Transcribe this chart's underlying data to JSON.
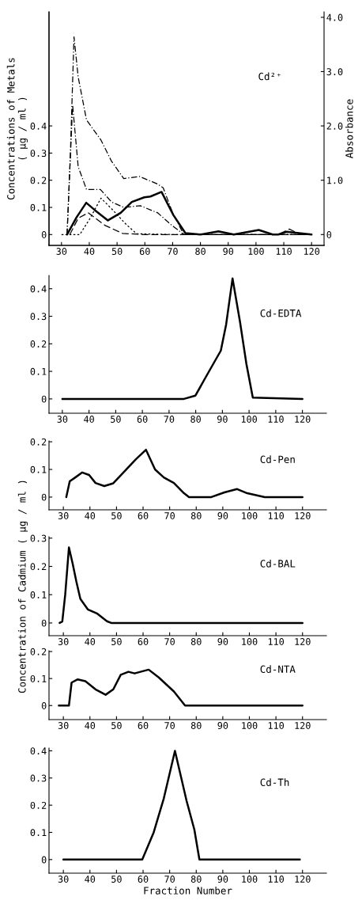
{
  "chart_data": [
    {
      "type": "line",
      "ylabel": "Concentrations of Metals\n( μg / ml )",
      "y2label": "Absorbance",
      "annotations": [
        "Cd²⁺"
      ],
      "xlim": [
        25.5,
        124.5
      ],
      "xticks": [
        30,
        40,
        50,
        60,
        70,
        80,
        90,
        100,
        110,
        120
      ],
      "ylim": [
        -0.04,
        0.82
      ],
      "yticks": [
        0,
        0.1,
        0.2,
        0.3,
        0.4
      ],
      "y2lim": [
        -0.2,
        4.1
      ],
      "y2ticks": [
        0,
        {
          "value": 1,
          "label": "1.0"
        },
        {
          "value": 2,
          "label": "2.0"
        },
        {
          "value": 3,
          "label": "3.0"
        },
        {
          "value": 4,
          "label": "4.0"
        }
      ],
      "series": [
        {
          "color": "#000000",
          "line_style": "solid",
          "x": [
            32,
            35.4,
            38.9,
            42,
            46.7,
            51.3,
            55.3,
            59.8,
            62,
            66,
            70.3,
            74.6,
            80,
            86.5,
            92,
            101,
            106,
            108,
            111,
            120
          ],
          "values": [
            0,
            0.063,
            0.117,
            0.09,
            0.052,
            0.08,
            0.12,
            0.137,
            0.14,
            0.157,
            0.071,
            0.005,
            0,
            0.012,
            0,
            0.017,
            0,
            0,
            0.01,
            0
          ]
        },
        {
          "color": "#000000",
          "line_style": "dashed",
          "x": [
            33,
            36,
            39.6,
            45.6,
            52,
            60,
            100,
            108,
            112,
            116,
            120
          ],
          "values": [
            0,
            0.06,
            0.08,
            0.034,
            0.004,
            0,
            0,
            0,
            0.02,
            0,
            0
          ]
        },
        {
          "color": "#000000",
          "line_style": "dotted",
          "x": [
            30,
            36.6,
            40.3,
            44.2,
            48.5,
            53,
            57,
            70,
            120
          ],
          "values": [
            0,
            0,
            0.06,
            0.134,
            0.09,
            0.04,
            0.003,
            0,
            0
          ]
        },
        {
          "color": "#000000",
          "line_style": "dashdot",
          "x": [
            32,
            34,
            36,
            39,
            44,
            48,
            52.4,
            58.4,
            64.6,
            69,
            74,
            90,
            120
          ],
          "values": [
            0,
            0.477,
            0.25,
            0.166,
            0.166,
            0.12,
            0.1,
            0.106,
            0.08,
            0.04,
            0,
            0,
            0
          ]
        },
        {
          "color": "#000000",
          "line_style": "dashdot",
          "axis": "y2",
          "x": [
            32,
            33.2,
            34.5,
            36,
            39,
            44.2,
            48,
            52.4,
            58,
            64.6,
            66.6,
            70,
            74,
            90,
            120
          ],
          "values": [
            0,
            1.5,
            3.64,
            2.9,
            2.11,
            1.74,
            1.35,
            1.03,
            1.07,
            0.93,
            0.86,
            0.4,
            0,
            0,
            0
          ]
        }
      ]
    },
    {
      "type": "line",
      "annotations": [
        "Cd-EDTA"
      ],
      "xlim": [
        25,
        129
      ],
      "xticks": [
        30,
        40,
        50,
        60,
        70,
        80,
        90,
        100,
        110,
        120
      ],
      "ylim": [
        -0.052,
        0.448
      ],
      "yticks": [
        0,
        0.1,
        0.2,
        0.3,
        0.4
      ],
      "series": [
        {
          "color": "#000000",
          "line_style": "solid",
          "x": [
            30,
            75.6,
            79.9,
            83.7,
            89.4,
            91.4,
            93.8,
            96.6,
            99,
            101.4,
            120
          ],
          "values": [
            0,
            0,
            0.012,
            0.078,
            0.175,
            0.27,
            0.437,
            0.28,
            0.127,
            0.005,
            0
          ]
        }
      ]
    },
    {
      "type": "line",
      "annotations": [
        "Cd-Pen"
      ],
      "xlim": [
        24.6,
        129
      ],
      "xticks": [
        30,
        40,
        50,
        60,
        70,
        80,
        90,
        100,
        110,
        120
      ],
      "ylim": [
        -0.046,
        0.203
      ],
      "yticks": [
        0,
        0.1,
        0.2
      ],
      "series": [
        {
          "color": "#000000",
          "line_style": "solid",
          "x": [
            31.1,
            32.4,
            34.5,
            37.1,
            39.7,
            42.1,
            45.4,
            48.8,
            52.6,
            57.3,
            61.1,
            64.5,
            67.8,
            71.6,
            75.4,
            77.3,
            85.7,
            90.6,
            95.4,
            99.2,
            105.8,
            120
          ],
          "values": [
            0,
            0.057,
            0.071,
            0.089,
            0.08,
            0.051,
            0.04,
            0.05,
            0.089,
            0.137,
            0.171,
            0.1,
            0.071,
            0.051,
            0.014,
            0,
            0,
            0.017,
            0.029,
            0.014,
            0,
            0
          ]
        }
      ]
    },
    {
      "type": "line",
      "ylabel": "Concentration of Cadmium ( μg / ml )",
      "annotations": [
        "Cd-BAL"
      ],
      "xlim": [
        24.6,
        129
      ],
      "xticks": [
        30,
        40,
        50,
        60,
        70,
        80,
        90,
        100,
        110,
        120
      ],
      "ylim": [
        -0.045,
        0.305
      ],
      "yticks": [
        0,
        0.1,
        0.2,
        0.3
      ],
      "series": [
        {
          "color": "#000000",
          "line_style": "solid",
          "x": [
            28.6,
            29.6,
            30.7,
            32.1,
            33.5,
            34.9,
            36.4,
            39.2,
            42.6,
            44.5,
            46.4,
            48,
            120
          ],
          "values": [
            0,
            0.005,
            0.1,
            0.267,
            0.21,
            0.146,
            0.085,
            0.048,
            0.034,
            0.02,
            0.006,
            0,
            0
          ]
        }
      ]
    },
    {
      "type": "line",
      "annotations": [
        "Cd-NTA"
      ],
      "xlim": [
        24.6,
        129
      ],
      "xticks": [
        30,
        40,
        50,
        60,
        70,
        80,
        90,
        100,
        110,
        120
      ],
      "ylim": [
        -0.052,
        0.203
      ],
      "yticks": [
        0,
        0.1,
        0.2
      ],
      "series": [
        {
          "color": "#000000",
          "line_style": "solid",
          "x": [
            28.3,
            32.1,
            33.1,
            35.4,
            38.3,
            42.1,
            45.9,
            48.8,
            51.6,
            54.5,
            56.8,
            62.1,
            65.9,
            71.6,
            75.8,
            120
          ],
          "values": [
            0,
            0,
            0.085,
            0.097,
            0.09,
            0.06,
            0.04,
            0.06,
            0.114,
            0.125,
            0.119,
            0.133,
            0.104,
            0.052,
            0,
            0
          ]
        }
      ]
    },
    {
      "type": "line",
      "xlabel": "Fraction Number",
      "annotations": [
        "Cd-Th"
      ],
      "xlim": [
        24.6,
        129
      ],
      "xticks": [
        30,
        40,
        50,
        60,
        70,
        80,
        90,
        100,
        110,
        120
      ],
      "ylim": [
        -0.05,
        0.41
      ],
      "yticks": [
        0,
        0.1,
        0.2,
        0.3,
        0.4
      ],
      "series": [
        {
          "color": "#000000",
          "line_style": "solid",
          "x": [
            30,
            59.7,
            64,
            67.8,
            72,
            76.4,
            79.3,
            81.2,
            119
          ],
          "values": [
            0,
            0,
            0.1,
            0.225,
            0.4,
            0.215,
            0.11,
            0,
            0
          ]
        }
      ]
    }
  ]
}
